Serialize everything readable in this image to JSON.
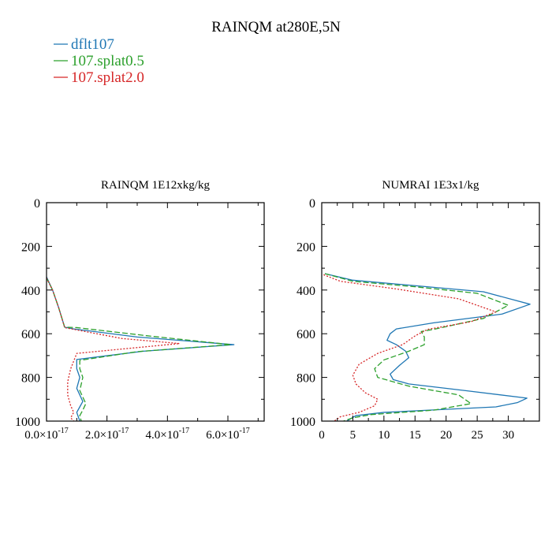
{
  "figure": {
    "title": "RAINQM at280E,5N",
    "legend": [
      {
        "label": "dflt107",
        "color": "#1f77b4",
        "dash": "solid"
      },
      {
        "label": "107.splat0.5",
        "color": "#2ca02c",
        "dash": "dashed"
      },
      {
        "label": "107.splat2.0",
        "color": "#d62728",
        "dash": "dotted"
      }
    ]
  },
  "chart_data": [
    {
      "type": "line",
      "title": "RAINQM  1E12xkg/kg",
      "xlim": [
        0,
        7.2e-17
      ],
      "ylim": [
        1000,
        0
      ],
      "y_inverted": true,
      "xticks": [
        0,
        2e-17,
        4e-17,
        6e-17
      ],
      "xtick_labels": [
        {
          "mant": "0.0",
          "base": "×10",
          "exp": "-17"
        },
        {
          "mant": "2.0",
          "base": "×10",
          "exp": "-17"
        },
        {
          "mant": "4.0",
          "base": "×10",
          "exp": "-17"
        },
        {
          "mant": "6.0",
          "base": "×10",
          "exp": "-17"
        }
      ],
      "yticks": [
        0,
        200,
        400,
        600,
        800,
        1000
      ],
      "ytick_labels": [
        "0",
        "200",
        "400",
        "600",
        "800",
        "1000"
      ],
      "series": [
        {
          "name": "dflt107",
          "color": "#1f77b4",
          "dash": "solid",
          "points": [
            [
              0,
              340
            ],
            [
              2e-18,
              400
            ],
            [
              4e-18,
              480
            ],
            [
              6e-18,
              570
            ],
            [
              9e-18,
              578
            ],
            [
              3e-17,
              615
            ],
            [
              6.2e-17,
              650
            ],
            [
              3.2e-17,
              680
            ],
            [
              1e-17,
              718
            ],
            [
              1e-17,
              760
            ],
            [
              1.1e-17,
              800
            ],
            [
              1e-17,
              850
            ],
            [
              1.2e-17,
              910
            ],
            [
              1.1e-17,
              935
            ],
            [
              1e-17,
              960
            ],
            [
              1.1e-17,
              1000
            ]
          ]
        },
        {
          "name": "107.splat0.5",
          "color": "#2ca02c",
          "dash": "dashed",
          "points": [
            [
              0,
              345
            ],
            [
              2e-18,
              400
            ],
            [
              4e-18,
              480
            ],
            [
              6e-18,
              570
            ],
            [
              1e-17,
              572
            ],
            [
              3.5e-17,
              612
            ],
            [
              6.1e-17,
              650
            ],
            [
              3e-17,
              682
            ],
            [
              1.1e-17,
              722
            ],
            [
              1.1e-17,
              760
            ],
            [
              1.2e-17,
              800
            ],
            [
              1.1e-17,
              860
            ],
            [
              1.3e-17,
              920
            ],
            [
              1.2e-17,
              950
            ],
            [
              1.1e-17,
              975
            ],
            [
              1.15e-17,
              1000
            ]
          ]
        },
        {
          "name": "107.splat2.0",
          "color": "#d62728",
          "dash": "dotted",
          "points": [
            [
              0,
              345
            ],
            [
              2e-18,
              400
            ],
            [
              4e-18,
              480
            ],
            [
              6e-18,
              572
            ],
            [
              2.5e-17,
              622
            ],
            [
              4.4e-17,
              645
            ],
            [
              2.5e-17,
              670
            ],
            [
              1e-17,
              690
            ],
            [
              8e-18,
              760
            ],
            [
              7e-18,
              820
            ],
            [
              7e-18,
              880
            ],
            [
              8e-18,
              930
            ],
            [
              9e-18,
              960
            ],
            [
              8e-18,
              985
            ],
            [
              9e-18,
              1000
            ]
          ]
        }
      ]
    },
    {
      "type": "line",
      "title": "NUMRAI  1E3x1/kg",
      "xlim": [
        0,
        35
      ],
      "ylim": [
        1000,
        0
      ],
      "y_inverted": true,
      "xticks": [
        0,
        5,
        10,
        15,
        20,
        25,
        30
      ],
      "xtick_labels": [
        {
          "mant": "0"
        },
        {
          "mant": "5"
        },
        {
          "mant": "10"
        },
        {
          "mant": "15"
        },
        {
          "mant": "20"
        },
        {
          "mant": "25"
        },
        {
          "mant": "30"
        }
      ],
      "yticks": [
        0,
        200,
        400,
        600,
        800,
        1000
      ],
      "ytick_labels": [
        "0",
        "200",
        "400",
        "600",
        "800",
        "1000"
      ],
      "series": [
        {
          "name": "dflt107",
          "color": "#1f77b4",
          "dash": "solid",
          "points": [
            [
              0.5,
              325
            ],
            [
              5,
              355
            ],
            [
              15,
              380
            ],
            [
              26,
              408
            ],
            [
              33.5,
              465
            ],
            [
              29,
              510
            ],
            [
              18,
              550
            ],
            [
              12,
              578
            ],
            [
              11,
              600
            ],
            [
              10.5,
              630
            ],
            [
              12,
              650
            ],
            [
              13.5,
              680
            ],
            [
              14,
              710
            ],
            [
              12.5,
              745
            ],
            [
              11,
              785
            ],
            [
              11.5,
              810
            ],
            [
              14,
              830
            ],
            [
              23,
              860
            ],
            [
              33,
              895
            ],
            [
              31.5,
              915
            ],
            [
              28,
              935
            ],
            [
              10,
              960
            ],
            [
              5.5,
              975
            ],
            [
              4,
              1000
            ]
          ]
        },
        {
          "name": "107.splat0.5",
          "color": "#2ca02c",
          "dash": "dashed",
          "points": [
            [
              0.5,
              325
            ],
            [
              5,
              360
            ],
            [
              15,
              385
            ],
            [
              25,
              415
            ],
            [
              30,
              470
            ],
            [
              26,
              530
            ],
            [
              18,
              580
            ],
            [
              16,
              590
            ],
            [
              16.5,
              615
            ],
            [
              16.5,
              650
            ],
            [
              14,
              680
            ],
            [
              10,
              720
            ],
            [
              8.5,
              760
            ],
            [
              9,
              800
            ],
            [
              14,
              840
            ],
            [
              22,
              880
            ],
            [
              24,
              920
            ],
            [
              18,
              950
            ],
            [
              8,
              970
            ],
            [
              5,
              985
            ],
            [
              3.5,
              1000
            ]
          ]
        },
        {
          "name": "107.splat2.0",
          "color": "#d62728",
          "dash": "dotted",
          "points": [
            [
              0.3,
              330
            ],
            [
              3,
              360
            ],
            [
              12,
              395
            ],
            [
              22,
              440
            ],
            [
              28,
              500
            ],
            [
              24,
              545
            ],
            [
              17,
              580
            ],
            [
              15,
              610
            ],
            [
              13,
              650
            ],
            [
              9,
              690
            ],
            [
              6,
              740
            ],
            [
              5,
              790
            ],
            [
              5.5,
              830
            ],
            [
              7,
              870
            ],
            [
              9,
              900
            ],
            [
              8.5,
              930
            ],
            [
              6,
              960
            ],
            [
              3,
              980
            ],
            [
              2,
              1000
            ]
          ]
        }
      ]
    }
  ]
}
